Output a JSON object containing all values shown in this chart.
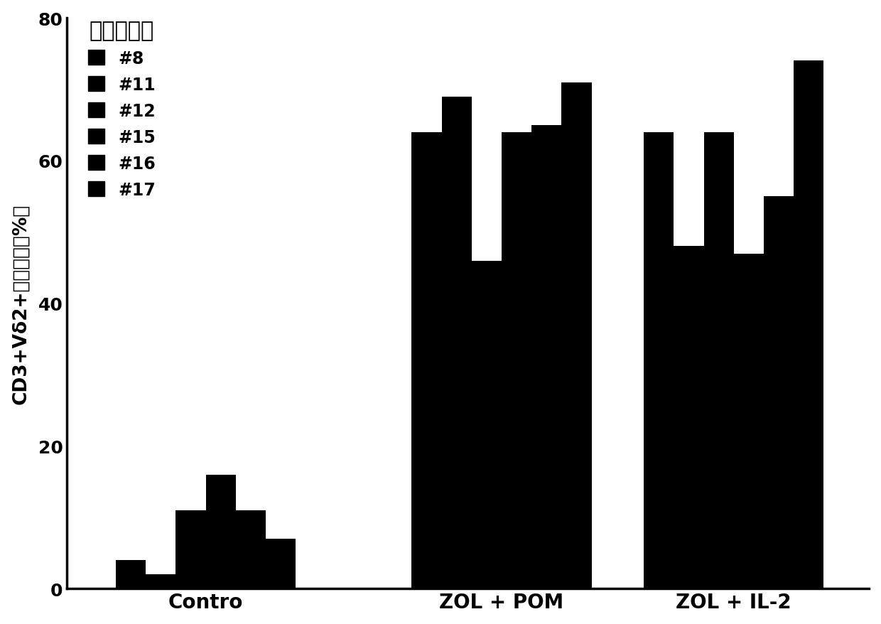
{
  "title": "健康志愿者",
  "ylabel": "CD3+Vδ2+细胞比例（%）",
  "groups": [
    "Contro",
    "ZOL + POM",
    "ZOL + IL-2"
  ],
  "series_labels": [
    "#8",
    "#11",
    "#12",
    "#15",
    "#16",
    "#17"
  ],
  "bar_color": "#000000",
  "background_color": "#ffffff",
  "ylim": [
    0,
    80
  ],
  "yticks": [
    0,
    20,
    40,
    60,
    80
  ],
  "values": {
    "Contro": [
      4,
      2,
      11,
      16,
      11,
      7
    ],
    "ZOL + POM": [
      64,
      69,
      46,
      64,
      65,
      71
    ],
    "ZOL + IL-2": [
      64,
      48,
      64,
      47,
      55,
      74
    ]
  },
  "group_centers": [
    0.42,
    1.95,
    3.15
  ],
  "bar_width": 0.155,
  "title_fontsize": 22,
  "axis_label_fontsize": 19,
  "tick_fontsize": 18,
  "legend_fontsize": 17
}
